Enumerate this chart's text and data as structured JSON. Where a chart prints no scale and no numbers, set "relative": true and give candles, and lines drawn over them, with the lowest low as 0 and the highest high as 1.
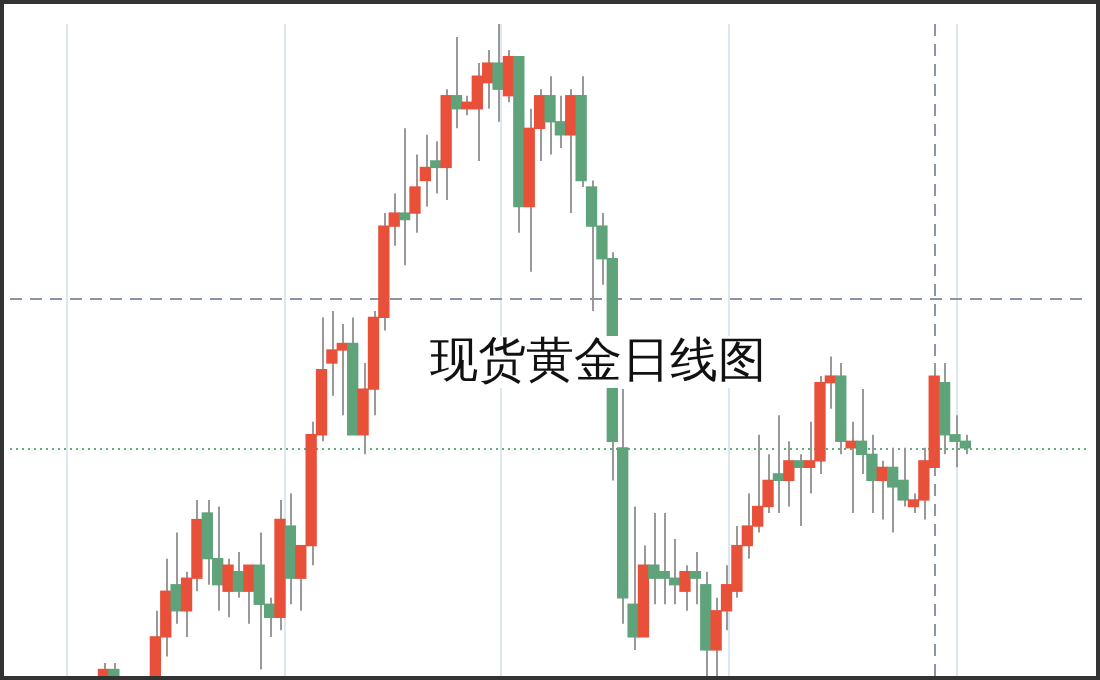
{
  "chart_data": {
    "type": "candlestick",
    "title": "现货黄金日线图",
    "relative": true,
    "categories": [
      null,
      null,
      null,
      null,
      null,
      null,
      null,
      null,
      null,
      null,
      null,
      null,
      null,
      null,
      null,
      null,
      null,
      null,
      null,
      null,
      null,
      null,
      null,
      null,
      null,
      null,
      null,
      null,
      null,
      null,
      null,
      null,
      null,
      null,
      null,
      null,
      null,
      null,
      null,
      null,
      null,
      null,
      null,
      null,
      null,
      null,
      null,
      null,
      null,
      null,
      null,
      null,
      null,
      null,
      null,
      null,
      null,
      null,
      null,
      null,
      null,
      null,
      null,
      null,
      null,
      null,
      null,
      null,
      null,
      null,
      null,
      null,
      null,
      null,
      null,
      null,
      null,
      null,
      null,
      null,
      null,
      null,
      null,
      null
    ],
    "ohlc": [
      [
        0,
        0.02,
        0,
        0.01
      ],
      [
        0.01,
        0.02,
        0,
        0
      ],
      null,
      null,
      null,
      [
        0,
        0.1,
        0,
        0.06
      ],
      [
        0.06,
        0.18,
        0.03,
        0.13
      ],
      [
        0.14,
        0.22,
        0.08,
        0.1
      ],
      [
        0.1,
        0.16,
        0.06,
        0.15
      ],
      [
        0.15,
        0.27,
        0.13,
        0.24
      ],
      [
        0.25,
        0.27,
        0.14,
        0.18
      ],
      [
        0.18,
        0.26,
        0.1,
        0.14
      ],
      [
        0.13,
        0.18,
        0.09,
        0.17
      ],
      [
        0.16,
        0.19,
        0.12,
        0.13
      ],
      [
        0.13,
        0.17,
        0.08,
        0.17
      ],
      [
        0.17,
        0.22,
        0.01,
        0.11
      ],
      [
        0.11,
        0.12,
        0.06,
        0.09
      ],
      [
        0.09,
        0.27,
        0.07,
        0.24
      ],
      [
        0.23,
        0.28,
        0.11,
        0.15
      ],
      [
        0.15,
        0.2,
        0.1,
        0.2
      ],
      [
        0.2,
        0.39,
        0.17,
        0.37
      ],
      [
        0.37,
        0.55,
        0.36,
        0.47
      ],
      [
        0.48,
        0.56,
        0.43,
        0.5
      ],
      [
        0.5,
        0.54,
        0.4,
        0.51
      ],
      [
        0.51,
        0.55,
        0.37,
        0.37
      ],
      [
        0.37,
        0.48,
        0.34,
        0.44
      ],
      [
        0.44,
        0.56,
        0.4,
        0.55
      ],
      [
        0.55,
        0.71,
        0.53,
        0.69
      ],
      [
        0.69,
        0.74,
        0.66,
        0.71
      ],
      [
        0.71,
        0.84,
        0.63,
        0.7
      ],
      [
        0.71,
        0.8,
        0.68,
        0.75
      ],
      [
        0.76,
        0.83,
        0.72,
        0.78
      ],
      [
        0.79,
        0.82,
        0.74,
        0.78
      ],
      [
        0.78,
        0.9,
        0.73,
        0.89
      ],
      [
        0.89,
        0.98,
        0.84,
        0.87
      ],
      [
        0.87,
        0.89,
        0.86,
        0.88
      ],
      [
        0.87,
        0.94,
        0.79,
        0.92
      ],
      [
        0.91,
        0.96,
        0.87,
        0.94
      ],
      [
        0.94,
        1,
        0.85,
        0.9
      ],
      [
        0.89,
        0.96,
        0.88,
        0.95
      ],
      [
        0.95,
        0.95,
        0.68,
        0.72
      ],
      [
        0.72,
        0.87,
        0.62,
        0.84
      ],
      [
        0.84,
        0.9,
        0.79,
        0.89
      ],
      [
        0.89,
        0.92,
        0.8,
        0.85
      ],
      [
        0.85,
        0.89,
        0.81,
        0.83
      ],
      [
        0.83,
        0.9,
        0.71,
        0.89
      ],
      [
        0.89,
        0.92,
        0.75,
        0.76
      ],
      [
        0.75,
        0.76,
        0.56,
        0.69
      ],
      [
        0.69,
        0.71,
        0.6,
        0.64
      ],
      [
        0.64,
        0.65,
        0.3,
        0.36
      ],
      [
        0.35,
        0.44,
        0.08,
        0.12
      ],
      [
        0.11,
        0.26,
        0.04,
        0.06
      ],
      [
        0.06,
        0.2,
        0.06,
        0.17
      ],
      [
        0.17,
        0.25,
        0.11,
        0.15
      ],
      [
        0.16,
        0.25,
        0.11,
        0.15
      ],
      [
        0.15,
        0.21,
        0.11,
        0.14
      ],
      [
        0.13,
        0.17,
        0.1,
        0.16
      ],
      [
        0.16,
        0.19,
        0.11,
        0.15
      ],
      [
        0.14,
        0.16,
        0,
        0.04
      ],
      [
        0.04,
        0.12,
        0,
        0.1
      ],
      [
        0.1,
        0.17,
        0.07,
        0.14
      ],
      [
        0.13,
        0.23,
        0.12,
        0.2
      ],
      [
        0.2,
        0.28,
        0.18,
        0.23
      ],
      [
        0.23,
        0.37,
        0.22,
        0.26
      ],
      [
        0.26,
        0.34,
        0.25,
        0.3
      ],
      [
        0.31,
        0.4,
        0.25,
        0.3
      ],
      [
        0.3,
        0.36,
        0.26,
        0.33
      ],
      [
        0.33,
        0.34,
        0.23,
        0.32
      ],
      [
        0.32,
        0.39,
        0.28,
        0.33
      ],
      [
        0.33,
        0.46,
        0.31,
        0.45
      ],
      [
        0.45,
        0.49,
        0.41,
        0.46
      ],
      [
        0.46,
        0.48,
        0.34,
        0.36
      ],
      [
        0.35,
        0.39,
        0.25,
        0.36
      ],
      [
        0.36,
        0.44,
        0.31,
        0.34
      ],
      [
        0.34,
        0.37,
        0.25,
        0.3
      ],
      [
        0.3,
        0.33,
        0.24,
        0.32
      ],
      [
        0.32,
        0.35,
        0.22,
        0.29
      ],
      [
        0.3,
        0.35,
        0.26,
        0.27
      ],
      [
        0.26,
        0.28,
        0.25,
        0.27
      ],
      [
        0.27,
        0.35,
        0.24,
        0.33
      ],
      [
        0.32,
        0.48,
        0.31,
        0.46
      ],
      [
        0.45,
        0.48,
        0.34,
        0.37
      ],
      [
        0.37,
        0.4,
        0.32,
        0.36
      ],
      [
        0.36,
        0.37,
        0.34,
        0.35
      ]
    ],
    "colors": [
      "#e8503a",
      "#5fa37a",
      null,
      null,
      null,
      "#e8503a",
      "#e8503a",
      "#5fa37a",
      "#e8503a",
      "#e8503a",
      "#5fa37a",
      "#5fa37a",
      "#e8503a",
      "#5fa37a",
      "#e8503a",
      "#5fa37a",
      "#5fa37a",
      "#e8503a",
      "#5fa37a",
      "#e8503a",
      "#e8503a",
      "#e8503a",
      "#e8503a",
      "#e8503a",
      "#5fa37a",
      "#e8503a",
      "#e8503a",
      "#e8503a",
      "#e8503a",
      "#5fa37a",
      "#e8503a",
      "#e8503a",
      "#5fa37a",
      "#e8503a",
      "#5fa37a",
      "#e8503a",
      "#e8503a",
      "#e8503a",
      "#5fa37a",
      "#e8503a",
      "#5fa37a",
      "#e8503a",
      "#e8503a",
      "#5fa37a",
      "#5fa37a",
      "#e8503a",
      "#5fa37a",
      "#5fa37a",
      "#5fa37a",
      "#5fa37a",
      "#5fa37a",
      "#5fa37a",
      "#e8503a",
      "#5fa37a",
      "#5fa37a",
      "#5fa37a",
      "#e8503a",
      "#5fa37a",
      "#5fa37a",
      "#e8503a",
      "#e8503a",
      "#e8503a",
      "#e8503a",
      "#e8503a",
      "#e8503a",
      "#5fa37a",
      "#e8503a",
      "#5fa37a",
      "#e8503a",
      "#e8503a",
      "#e8503a",
      "#5fa37a",
      "#e8503a",
      "#5fa37a",
      "#5fa37a",
      "#e8503a",
      "#5fa37a",
      "#5fa37a",
      "#e8503a",
      "#e8503a",
      "#e8503a",
      "#5fa37a",
      "#5fa37a",
      "#5fa37a"
    ],
    "ref_lines": [
      {
        "axis": "y",
        "value": 0.58,
        "color": "#8a96a8",
        "line_style": "dashed"
      },
      {
        "axis": "y",
        "value": 0.35,
        "color": "#5fb07a",
        "line_style": "dotted"
      }
    ]
  }
}
